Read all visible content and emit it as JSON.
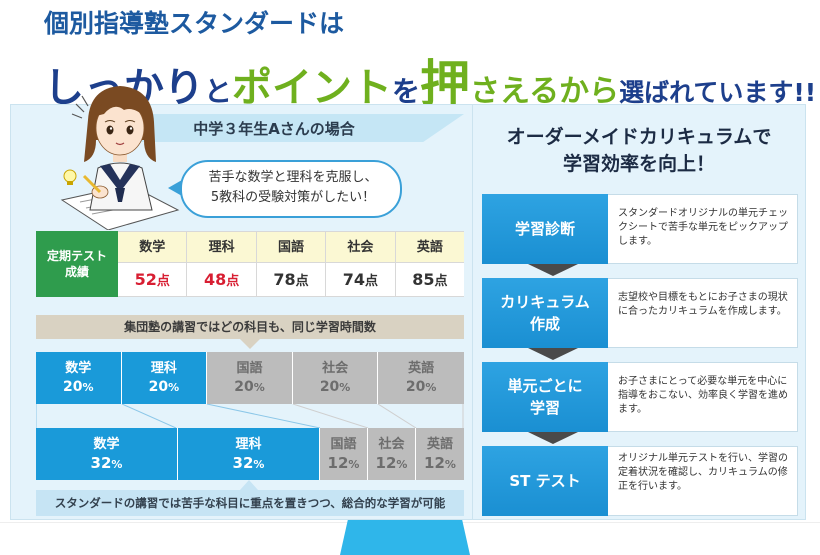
{
  "headline": {
    "line1": "個別指導塾スタンダードは",
    "line2_a": "しっかり",
    "line2_b": "と",
    "line2_c": "ポイント",
    "line2_d": "を",
    "line2_e": "押",
    "line2_f": "さえるから",
    "line2_g": "選ばれています!!"
  },
  "case": {
    "label": "中学３年生Aさんの場合",
    "bubble_line1": "苦手な数学と理科を克服し、",
    "bubble_line2": "5教科の受験対策がしたい！"
  },
  "scores": {
    "label_line1": "定期テスト",
    "label_line2": "成績",
    "unit": "点",
    "items": [
      {
        "subject": "数学",
        "score": "52",
        "weak": true
      },
      {
        "subject": "理科",
        "score": "48",
        "weak": true
      },
      {
        "subject": "国語",
        "score": "78",
        "weak": false
      },
      {
        "subject": "社会",
        "score": "74",
        "weak": false
      },
      {
        "subject": "英語",
        "score": "85",
        "weak": false
      }
    ]
  },
  "group": {
    "label": "集団塾の講習ではどの科目も、同じ学習時間数",
    "items": [
      {
        "subject": "数学",
        "pct": "20",
        "weak": true
      },
      {
        "subject": "理科",
        "pct": "20",
        "weak": true
      },
      {
        "subject": "国語",
        "pct": "20",
        "weak": false
      },
      {
        "subject": "社会",
        "pct": "20",
        "weak": false
      },
      {
        "subject": "英語",
        "pct": "20",
        "weak": false
      }
    ]
  },
  "standard": {
    "items": [
      {
        "subject": "数学",
        "pct": "32",
        "weak": true
      },
      {
        "subject": "理科",
        "pct": "32",
        "weak": true
      },
      {
        "subject": "国語",
        "pct": "12",
        "weak": false
      },
      {
        "subject": "社会",
        "pct": "12",
        "weak": false
      },
      {
        "subject": "英語",
        "pct": "12",
        "weak": false
      }
    ],
    "percent_sign": "%",
    "label": "スタンダードの講習では苦手な科目に重点を置きつつ、総合的な学習が可能"
  },
  "curriculum": {
    "title_line1": "オーダーメイドカリキュラムで",
    "title_line2": "学習効率を向上！",
    "steps": [
      {
        "head_line1": "学習診断",
        "head_line2": "",
        "desc": "スタンダードオリジナルの単元チェックシートで苦手な単元をピックアップします。"
      },
      {
        "head_line1": "カリキュラム",
        "head_line2": "作成",
        "desc": "志望校や目標をもとにお子さまの現状に合ったカリキュラムを作成します。"
      },
      {
        "head_line1": "単元ごとに",
        "head_line2": "学習",
        "desc": "お子さまにとって必要な単元を中心に指導をおこない、効率良く学習を進めます。"
      },
      {
        "head_line1": "ST テスト",
        "head_line2": "",
        "desc": "オリジナル単元テストを行い、学習の定着状況を確認し、カリキュラムの修正を行います。"
      }
    ]
  },
  "colors": {
    "accent_blue": "#1a9ad9",
    "accent_green": "#6fb01e",
    "weak_red": "#d81e32",
    "gray": "#bcbcbc"
  },
  "icons": {
    "girl": "student-girl-illustration"
  }
}
